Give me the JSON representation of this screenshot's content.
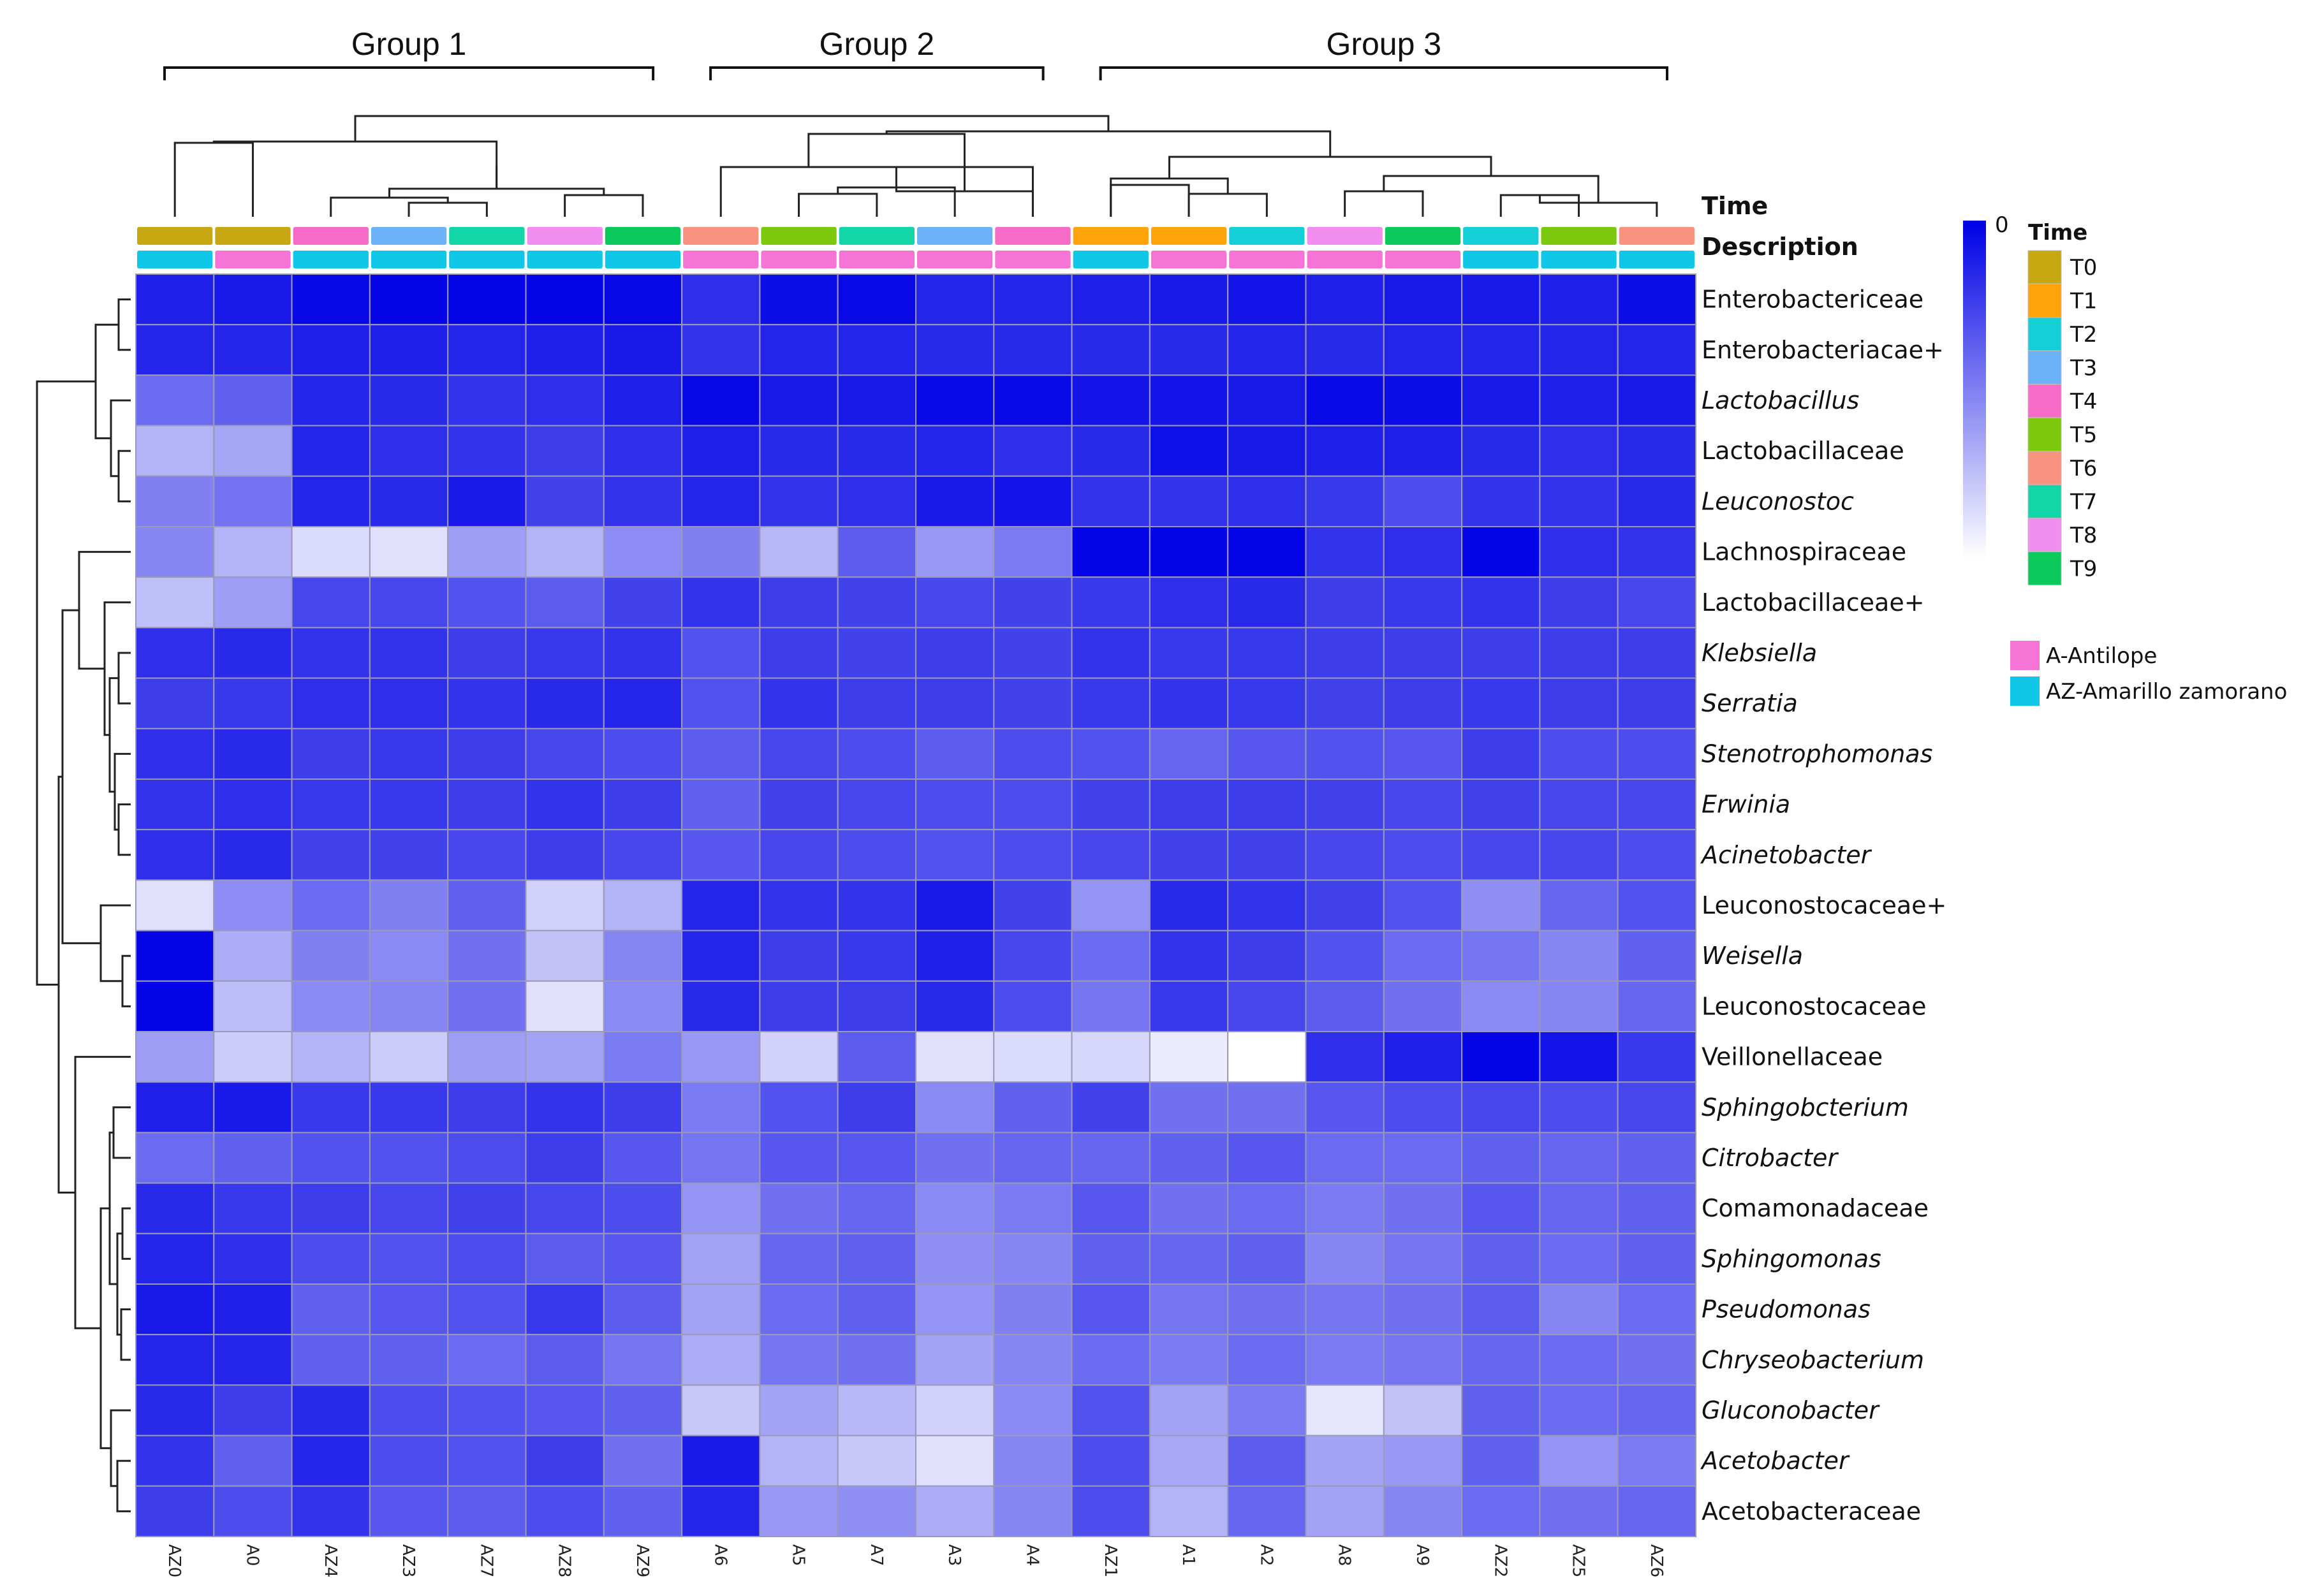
{
  "colors": {
    "antilope": "#f574d6",
    "amarillo": "#10c7e8"
  },
  "chart_data": {
    "type": "heatmap",
    "title": "",
    "groups": [
      {
        "label": "Group 1",
        "columns": [
          "AZ0",
          "A0",
          "AZ4",
          "AZ3",
          "AZ7",
          "AZ8",
          "AZ9"
        ]
      },
      {
        "label": "Group 2",
        "columns": [
          "A6",
          "A5",
          "A7",
          "A3",
          "A4"
        ]
      },
      {
        "label": "Group 3",
        "columns": [
          "AZ1",
          "A1",
          "A2",
          "A8",
          "A9",
          "AZ2",
          "AZ5",
          "AZ6"
        ]
      }
    ],
    "columns": [
      "AZ0",
      "A0",
      "AZ4",
      "AZ3",
      "AZ7",
      "AZ8",
      "AZ9",
      "A6",
      "A5",
      "A7",
      "A3",
      "A4",
      "AZ1",
      "A1",
      "A2",
      "A8",
      "A9",
      "AZ2",
      "AZ5",
      "AZ6"
    ],
    "time_track_title": "Time",
    "description_track_title": "Description",
    "time_annotation": [
      "T0",
      "T0",
      "T4",
      "T3",
      "T7",
      "T8",
      "T9",
      "T6",
      "T5",
      "T7",
      "T3",
      "T4",
      "T1",
      "T1",
      "T2",
      "T8",
      "T9",
      "T2",
      "T5",
      "T6"
    ],
    "description_annotation": [
      "AZ",
      "A",
      "AZ",
      "AZ",
      "AZ",
      "AZ",
      "AZ",
      "A",
      "A",
      "A",
      "A",
      "A",
      "AZ",
      "A",
      "A",
      "A",
      "A",
      "AZ",
      "AZ",
      "AZ"
    ],
    "rows": [
      {
        "name": "Enterobactericeae",
        "italic": false
      },
      {
        "name": "Enterobacteriacae+",
        "italic": false
      },
      {
        "name": "Lactobacillus",
        "italic": true
      },
      {
        "name": "Lactobacillaceae",
        "italic": false
      },
      {
        "name": "Leuconostoc",
        "italic": true
      },
      {
        "name": "Lachnospiraceae",
        "italic": false
      },
      {
        "name": "Lactobacillaceae+",
        "italic": false
      },
      {
        "name": "Klebsiella",
        "italic": true
      },
      {
        "name": "Serratia",
        "italic": true
      },
      {
        "name": "Stenotrophomonas",
        "italic": true
      },
      {
        "name": "Erwinia",
        "italic": true
      },
      {
        "name": "Acinetobacter",
        "italic": true
      },
      {
        "name": "Leuconostocaceae+",
        "italic": false
      },
      {
        "name": "Weisella",
        "italic": true
      },
      {
        "name": "Leuconostocaceae",
        "italic": false
      },
      {
        "name": "Veillonellaceae",
        "italic": false
      },
      {
        "name": "Sphingobcterium",
        "italic": true
      },
      {
        "name": "Citrobacter",
        "italic": true
      },
      {
        "name": "Comamonadaceae",
        "italic": false
      },
      {
        "name": "Sphingomonas",
        "italic": true
      },
      {
        "name": "Pseudomonas",
        "italic": true
      },
      {
        "name": "Chryseobacterium",
        "italic": true
      },
      {
        "name": "Gluconobacter",
        "italic": true
      },
      {
        "name": "Acetobacter",
        "italic": true
      },
      {
        "name": "Acetobacteraceae",
        "italic": false
      }
    ],
    "values_note": "intensity 0 = white, 1 = full blue (0 on scale); estimated from cell shading",
    "values": [
      [
        0.88,
        0.9,
        0.97,
        0.98,
        0.98,
        0.98,
        0.97,
        0.82,
        0.95,
        0.96,
        0.86,
        0.86,
        0.88,
        0.9,
        0.92,
        0.88,
        0.9,
        0.9,
        0.88,
        0.95
      ],
      [
        0.86,
        0.86,
        0.88,
        0.88,
        0.86,
        0.88,
        0.9,
        0.8,
        0.86,
        0.86,
        0.84,
        0.84,
        0.84,
        0.84,
        0.86,
        0.84,
        0.86,
        0.86,
        0.86,
        0.86
      ],
      [
        0.58,
        0.62,
        0.86,
        0.84,
        0.8,
        0.82,
        0.88,
        0.97,
        0.9,
        0.9,
        0.96,
        0.96,
        0.92,
        0.92,
        0.9,
        0.96,
        0.95,
        0.9,
        0.88,
        0.9
      ],
      [
        0.3,
        0.35,
        0.86,
        0.82,
        0.8,
        0.76,
        0.82,
        0.88,
        0.84,
        0.84,
        0.86,
        0.82,
        0.84,
        0.94,
        0.9,
        0.88,
        0.88,
        0.84,
        0.82,
        0.84
      ],
      [
        0.5,
        0.55,
        0.86,
        0.84,
        0.9,
        0.74,
        0.8,
        0.86,
        0.8,
        0.82,
        0.9,
        0.92,
        0.8,
        0.8,
        0.82,
        0.78,
        0.7,
        0.8,
        0.8,
        0.84
      ],
      [
        0.48,
        0.3,
        0.14,
        0.12,
        0.38,
        0.3,
        0.45,
        0.5,
        0.28,
        0.64,
        0.4,
        0.52,
        0.98,
        0.98,
        0.98,
        0.8,
        0.82,
        0.98,
        0.82,
        0.8
      ],
      [
        0.25,
        0.38,
        0.72,
        0.72,
        0.68,
        0.64,
        0.74,
        0.8,
        0.76,
        0.74,
        0.72,
        0.74,
        0.78,
        0.82,
        0.84,
        0.76,
        0.78,
        0.8,
        0.76,
        0.72
      ],
      [
        0.82,
        0.84,
        0.8,
        0.8,
        0.76,
        0.78,
        0.8,
        0.68,
        0.76,
        0.74,
        0.76,
        0.74,
        0.8,
        0.78,
        0.78,
        0.76,
        0.76,
        0.76,
        0.76,
        0.76
      ],
      [
        0.76,
        0.78,
        0.82,
        0.82,
        0.8,
        0.84,
        0.86,
        0.68,
        0.8,
        0.76,
        0.76,
        0.74,
        0.78,
        0.8,
        0.78,
        0.74,
        0.76,
        0.78,
        0.76,
        0.76
      ],
      [
        0.82,
        0.84,
        0.76,
        0.78,
        0.76,
        0.72,
        0.7,
        0.64,
        0.72,
        0.7,
        0.64,
        0.7,
        0.68,
        0.6,
        0.66,
        0.68,
        0.66,
        0.76,
        0.7,
        0.7
      ],
      [
        0.8,
        0.82,
        0.78,
        0.78,
        0.76,
        0.8,
        0.76,
        0.62,
        0.74,
        0.72,
        0.7,
        0.7,
        0.74,
        0.76,
        0.76,
        0.74,
        0.72,
        0.74,
        0.72,
        0.72
      ],
      [
        0.82,
        0.84,
        0.74,
        0.74,
        0.72,
        0.76,
        0.72,
        0.66,
        0.72,
        0.7,
        0.68,
        0.7,
        0.72,
        0.74,
        0.74,
        0.72,
        0.7,
        0.72,
        0.72,
        0.7
      ],
      [
        0.12,
        0.45,
        0.58,
        0.5,
        0.62,
        0.18,
        0.3,
        0.86,
        0.8,
        0.8,
        0.9,
        0.74,
        0.42,
        0.84,
        0.8,
        0.74,
        0.68,
        0.44,
        0.6,
        0.68
      ],
      [
        0.98,
        0.32,
        0.5,
        0.46,
        0.56,
        0.24,
        0.48,
        0.86,
        0.76,
        0.78,
        0.88,
        0.72,
        0.58,
        0.8,
        0.76,
        0.68,
        0.58,
        0.54,
        0.48,
        0.62
      ],
      [
        0.98,
        0.26,
        0.46,
        0.48,
        0.56,
        0.12,
        0.46,
        0.84,
        0.76,
        0.76,
        0.84,
        0.7,
        0.54,
        0.78,
        0.72,
        0.64,
        0.56,
        0.46,
        0.48,
        0.6
      ],
      [
        0.38,
        0.2,
        0.3,
        0.2,
        0.38,
        0.36,
        0.52,
        0.4,
        0.18,
        0.64,
        0.12,
        0.14,
        0.16,
        0.08,
        0.0,
        0.82,
        0.88,
        0.98,
        0.92,
        0.78
      ],
      [
        0.88,
        0.9,
        0.78,
        0.78,
        0.76,
        0.8,
        0.76,
        0.52,
        0.68,
        0.76,
        0.46,
        0.62,
        0.74,
        0.56,
        0.56,
        0.66,
        0.7,
        0.72,
        0.7,
        0.72
      ],
      [
        0.58,
        0.62,
        0.68,
        0.68,
        0.7,
        0.76,
        0.66,
        0.54,
        0.66,
        0.66,
        0.56,
        0.6,
        0.6,
        0.62,
        0.66,
        0.58,
        0.58,
        0.62,
        0.6,
        0.62
      ],
      [
        0.84,
        0.78,
        0.76,
        0.72,
        0.74,
        0.72,
        0.7,
        0.42,
        0.56,
        0.6,
        0.46,
        0.52,
        0.66,
        0.56,
        0.58,
        0.52,
        0.56,
        0.66,
        0.6,
        0.62
      ],
      [
        0.86,
        0.82,
        0.7,
        0.68,
        0.7,
        0.64,
        0.66,
        0.36,
        0.6,
        0.62,
        0.44,
        0.48,
        0.62,
        0.6,
        0.62,
        0.48,
        0.54,
        0.62,
        0.58,
        0.62
      ],
      [
        0.9,
        0.88,
        0.62,
        0.66,
        0.68,
        0.78,
        0.64,
        0.36,
        0.58,
        0.62,
        0.42,
        0.5,
        0.66,
        0.54,
        0.56,
        0.54,
        0.56,
        0.64,
        0.48,
        0.58
      ],
      [
        0.86,
        0.86,
        0.62,
        0.62,
        0.58,
        0.64,
        0.54,
        0.32,
        0.54,
        0.56,
        0.36,
        0.48,
        0.58,
        0.52,
        0.58,
        0.52,
        0.54,
        0.6,
        0.58,
        0.56
      ],
      [
        0.84,
        0.76,
        0.84,
        0.7,
        0.68,
        0.66,
        0.62,
        0.22,
        0.36,
        0.28,
        0.18,
        0.46,
        0.68,
        0.36,
        0.52,
        0.1,
        0.24,
        0.62,
        0.58,
        0.6
      ],
      [
        0.8,
        0.62,
        0.86,
        0.7,
        0.68,
        0.76,
        0.56,
        0.9,
        0.3,
        0.22,
        0.12,
        0.48,
        0.7,
        0.34,
        0.64,
        0.36,
        0.4,
        0.62,
        0.42,
        0.52
      ],
      [
        0.76,
        0.7,
        0.8,
        0.66,
        0.64,
        0.7,
        0.62,
        0.86,
        0.4,
        0.44,
        0.32,
        0.48,
        0.7,
        0.3,
        0.6,
        0.36,
        0.48,
        0.58,
        0.56,
        0.6
      ]
    ],
    "scale_label": "0",
    "legend_time_title": "Time",
    "legend_time_entries": [
      {
        "label": "T0",
        "color": "#c8a812"
      },
      {
        "label": "T1",
        "color": "#ffa30a"
      },
      {
        "label": "T2",
        "color": "#14cfd8"
      },
      {
        "label": "T3",
        "color": "#6cb2f8"
      },
      {
        "label": "T4",
        "color": "#f56bc5"
      },
      {
        "label": "T5",
        "color": "#7cc80c"
      },
      {
        "label": "T6",
        "color": "#f9927e"
      },
      {
        "label": "T7",
        "color": "#12d6a8"
      },
      {
        "label": "T8",
        "color": "#f28ef0"
      },
      {
        "label": "T9",
        "color": "#0cc95c"
      }
    ],
    "legend_description_entries": [
      {
        "code": "A",
        "label": "A-Antilope",
        "color": "#f574d6"
      },
      {
        "code": "AZ",
        "label": "AZ-Amarillo zamorano",
        "color": "#10c7e8"
      }
    ]
  }
}
